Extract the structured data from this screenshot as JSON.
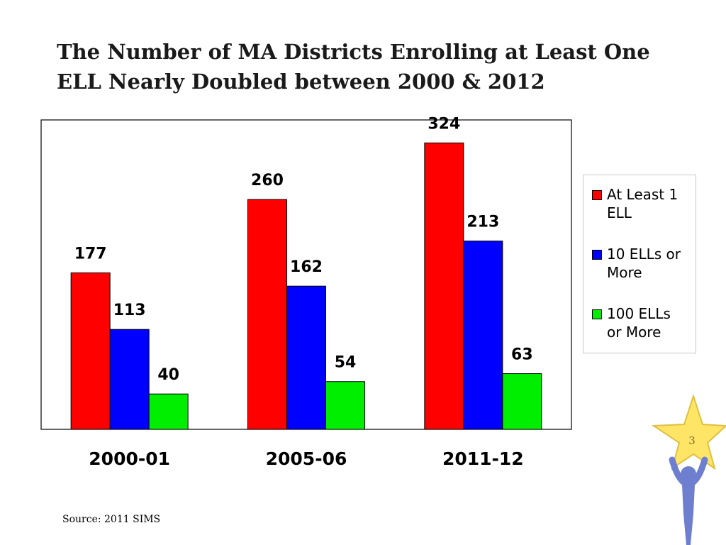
{
  "slide": {
    "title": "The Number of MA Districts Enrolling at Least One ELL Nearly Doubled between 2000 & 2012",
    "source": "Source: 2011  SIMS",
    "page_number": "3"
  },
  "chart_data": {
    "type": "bar",
    "title": "",
    "categories": [
      "2000-01",
      "2005-06",
      "2011-12"
    ],
    "series": [
      {
        "name": "At Least 1 ELL",
        "values": [
          177,
          260,
          324
        ],
        "color": "#ff0000"
      },
      {
        "name": "10 ELLs or More",
        "values": [
          113,
          162,
          213
        ],
        "color": "#0000ff"
      },
      {
        "name": "100 ELLs or More",
        "values": [
          40,
          54,
          63
        ],
        "color": "#00ee00"
      }
    ],
    "ylim": [
      0,
      350
    ],
    "grid": false,
    "legend": "right"
  },
  "legend": {
    "items": [
      {
        "label_line1": "At Least 1",
        "label_line2": "ELL",
        "color": "#ff0000"
      },
      {
        "label_line1": "10 ELLs or",
        "label_line2": "More",
        "color": "#0000ff"
      },
      {
        "label_line1": "100 ELLs",
        "label_line2": "or More",
        "color": "#00ee00"
      }
    ]
  },
  "decoration": {
    "icon": "star-person-icon"
  }
}
